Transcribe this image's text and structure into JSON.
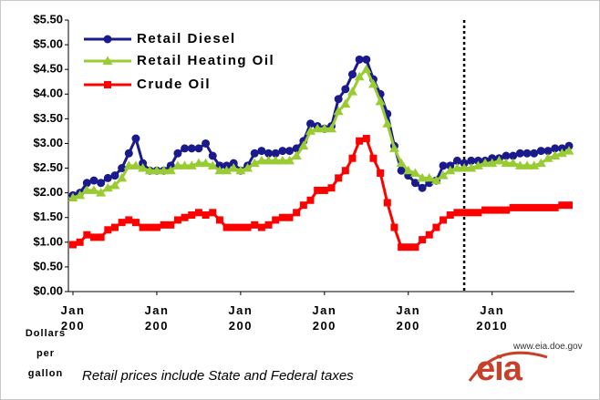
{
  "chart_data": {
    "type": "line",
    "categories": [
      "Jan\n200",
      null,
      null,
      null,
      null,
      null,
      null,
      null,
      null,
      null,
      null,
      null,
      "Jan\n200",
      null,
      null,
      null,
      null,
      null,
      null,
      null,
      null,
      null,
      null,
      null,
      "Jan\n200",
      null,
      null,
      null,
      null,
      null,
      null,
      null,
      null,
      null,
      null,
      null,
      "Jan\n200",
      null,
      null,
      null,
      null,
      null,
      null,
      null,
      null,
      null,
      null,
      null,
      "Jan\n200",
      null,
      null,
      null,
      null,
      null,
      null,
      null,
      null,
      null,
      null,
      null,
      "Jan\n2010",
      null,
      null,
      null,
      null,
      null,
      null,
      null,
      null,
      null,
      null,
      null
    ],
    "series": [
      {
        "name": "Retail Diesel",
        "color": "#1a1a8c",
        "marker": "circle",
        "values": [
          1.95,
          2.0,
          2.2,
          2.25,
          2.2,
          2.3,
          2.35,
          2.5,
          2.8,
          3.1,
          2.6,
          2.45,
          2.45,
          2.45,
          2.55,
          2.8,
          2.9,
          2.9,
          2.9,
          3.0,
          2.75,
          2.55,
          2.55,
          2.6,
          2.45,
          2.55,
          2.8,
          2.85,
          2.8,
          2.8,
          2.85,
          2.85,
          2.9,
          3.05,
          3.4,
          3.35,
          3.3,
          3.35,
          3.9,
          4.1,
          4.4,
          4.7,
          4.7,
          4.3,
          4.0,
          3.6,
          2.95,
          2.45,
          2.35,
          2.2,
          2.1,
          2.2,
          2.25,
          2.55,
          2.55,
          2.65,
          2.6,
          2.65,
          2.65,
          2.65,
          2.7,
          2.7,
          2.75,
          2.75,
          2.8,
          2.8,
          2.8,
          2.85,
          2.85,
          2.9,
          2.9,
          2.95
        ]
      },
      {
        "name": "Retail Heating Oil",
        "color": "#99cc33",
        "marker": "triangle",
        "values": [
          1.9,
          1.95,
          2.05,
          2.05,
          2.0,
          2.1,
          2.15,
          2.3,
          2.55,
          2.55,
          2.5,
          2.45,
          2.45,
          2.45,
          2.45,
          2.55,
          2.55,
          2.55,
          2.6,
          2.6,
          2.55,
          2.45,
          2.45,
          2.5,
          2.45,
          2.5,
          2.6,
          2.65,
          2.65,
          2.65,
          2.65,
          2.65,
          2.75,
          2.95,
          3.25,
          3.3,
          3.3,
          3.3,
          3.65,
          3.8,
          4.05,
          4.35,
          4.5,
          4.2,
          3.85,
          3.4,
          2.9,
          2.6,
          2.45,
          2.4,
          2.3,
          2.3,
          2.25,
          2.35,
          2.45,
          2.5,
          2.5,
          2.5,
          2.55,
          2.6,
          2.6,
          2.65,
          2.6,
          2.6,
          2.55,
          2.55,
          2.55,
          2.6,
          2.7,
          2.75,
          2.8,
          2.85
        ]
      },
      {
        "name": "Crude Oil",
        "color": "#ff0000",
        "marker": "square",
        "values": [
          0.95,
          1.0,
          1.15,
          1.1,
          1.1,
          1.25,
          1.3,
          1.4,
          1.45,
          1.4,
          1.3,
          1.3,
          1.3,
          1.35,
          1.35,
          1.45,
          1.5,
          1.55,
          1.6,
          1.55,
          1.6,
          1.45,
          1.3,
          1.3,
          1.3,
          1.3,
          1.35,
          1.3,
          1.35,
          1.45,
          1.5,
          1.5,
          1.6,
          1.75,
          1.85,
          2.05,
          2.05,
          2.1,
          2.3,
          2.45,
          2.7,
          3.05,
          3.1,
          2.7,
          2.4,
          1.8,
          1.3,
          0.9,
          0.9,
          0.9,
          1.05,
          1.15,
          1.3,
          1.45,
          1.55,
          1.6,
          1.6,
          1.6,
          1.6,
          1.65,
          1.65,
          1.65,
          1.65,
          1.7,
          1.7,
          1.7,
          1.7,
          1.7,
          1.7,
          1.7,
          1.75,
          1.75
        ]
      }
    ],
    "ylim": [
      0,
      5.5
    ],
    "yticks": [
      {
        "value": 0,
        "label": "$0.00"
      },
      {
        "value": 0.5,
        "label": "$0.50"
      },
      {
        "value": 1,
        "label": "$1.00"
      },
      {
        "value": 1.5,
        "label": "$1.50"
      },
      {
        "value": 2,
        "label": "$2.00"
      },
      {
        "value": 2.5,
        "label": "$2.50"
      },
      {
        "value": 3,
        "label": "$3.00"
      },
      {
        "value": 3.5,
        "label": "$3.50"
      },
      {
        "value": 4,
        "label": "$4.00"
      },
      {
        "value": 4.5,
        "label": "$4.50"
      },
      {
        "value": 5,
        "label": "$5.00"
      },
      {
        "value": 5.5,
        "label": "$5.50"
      }
    ],
    "vertical_line_at": 56,
    "y_label": "Dollars\nper\ngallon",
    "note": "Retail prices include State and Federal taxes",
    "source_url": "www.eia.doe.gov",
    "logo": "eia"
  }
}
